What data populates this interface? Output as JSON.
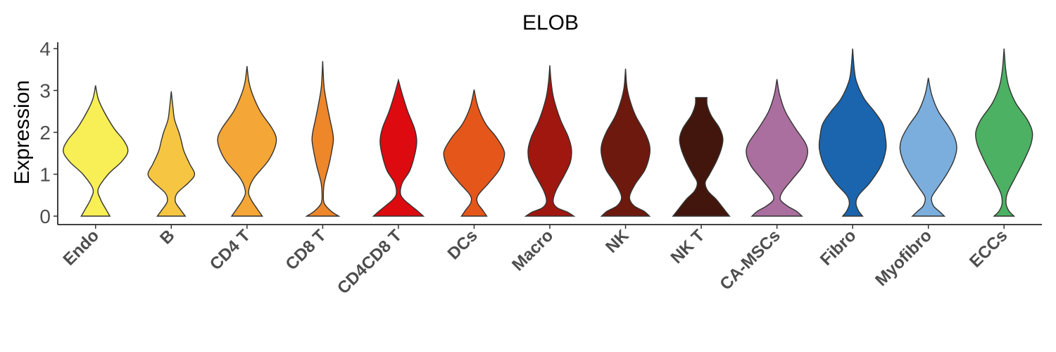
{
  "chart_data": {
    "type": "violin",
    "title": "ELOB",
    "ylabel": "Expression",
    "xlabel": "",
    "ylim": [
      0,
      4
    ],
    "yticks": [
      "0",
      "1",
      "2",
      "3",
      "4"
    ],
    "grid": false,
    "legend": "none",
    "categories": [
      "Endo",
      "B",
      "CD4 T",
      "CD8 T",
      "CD4CD8 T",
      "DCs",
      "Macro",
      "NK",
      "NK T",
      "CA-MSCs",
      "Fibro",
      "Myofibro",
      "ECCs"
    ],
    "colors": [
      "#F7EF55",
      "#F6C643",
      "#F4A636",
      "#EE862A",
      "#DD0A10",
      "#E5561B",
      "#A0170F",
      "#6E190E",
      "#42160C",
      "#AA6F9E",
      "#1A65AE",
      "#7BAEDD",
      "#4CB163"
    ],
    "violins": [
      {
        "name": "Endo",
        "max": 3.12,
        "cap": false,
        "profile": [
          [
            0,
            0.43
          ],
          [
            0.18,
            0.3
          ],
          [
            0.4,
            0.15
          ],
          [
            0.65,
            0.08
          ],
          [
            1.0,
            0.38
          ],
          [
            1.3,
            0.78
          ],
          [
            1.55,
            0.97
          ],
          [
            1.8,
            0.85
          ],
          [
            2.1,
            0.55
          ],
          [
            2.5,
            0.25
          ],
          [
            2.8,
            0.08
          ],
          [
            3.12,
            0.0
          ]
        ]
      },
      {
        "name": "B",
        "max": 2.98,
        "cap": false,
        "profile": [
          [
            0,
            0.42
          ],
          [
            0.15,
            0.28
          ],
          [
            0.35,
            0.12
          ],
          [
            0.55,
            0.18
          ],
          [
            0.8,
            0.52
          ],
          [
            1.0,
            0.7
          ],
          [
            1.25,
            0.55
          ],
          [
            1.55,
            0.38
          ],
          [
            1.8,
            0.3
          ],
          [
            2.0,
            0.23
          ],
          [
            2.3,
            0.1
          ],
          [
            2.6,
            0.05
          ],
          [
            2.98,
            0.0
          ]
        ]
      },
      {
        "name": "CD4 T",
        "max": 3.58,
        "cap": false,
        "profile": [
          [
            0,
            0.46
          ],
          [
            0.18,
            0.3
          ],
          [
            0.4,
            0.12
          ],
          [
            0.6,
            0.05
          ],
          [
            0.9,
            0.2
          ],
          [
            1.3,
            0.62
          ],
          [
            1.6,
            0.82
          ],
          [
            1.85,
            0.88
          ],
          [
            2.1,
            0.75
          ],
          [
            2.5,
            0.4
          ],
          [
            2.9,
            0.17
          ],
          [
            3.2,
            0.06
          ],
          [
            3.58,
            0.0
          ]
        ]
      },
      {
        "name": "CD8 T",
        "max": 3.7,
        "cap": false,
        "profile": [
          [
            0,
            0.48
          ],
          [
            0.12,
            0.25
          ],
          [
            0.3,
            0.05
          ],
          [
            0.5,
            0.02
          ],
          [
            0.8,
            0.05
          ],
          [
            1.2,
            0.18
          ],
          [
            1.5,
            0.26
          ],
          [
            1.8,
            0.32
          ],
          [
            2.0,
            0.3
          ],
          [
            2.3,
            0.22
          ],
          [
            2.7,
            0.12
          ],
          [
            3.1,
            0.04
          ],
          [
            3.7,
            0.0
          ]
        ]
      },
      {
        "name": "CD4CD8 T",
        "max": 3.25,
        "cap": false,
        "profile": [
          [
            0,
            0.75
          ],
          [
            0.12,
            0.58
          ],
          [
            0.25,
            0.38
          ],
          [
            0.4,
            0.16
          ],
          [
            0.55,
            0.06
          ],
          [
            0.8,
            0.12
          ],
          [
            1.1,
            0.35
          ],
          [
            1.5,
            0.5
          ],
          [
            1.8,
            0.55
          ],
          [
            2.1,
            0.48
          ],
          [
            2.5,
            0.28
          ],
          [
            2.9,
            0.12
          ],
          [
            3.25,
            0.0
          ]
        ]
      },
      {
        "name": "DCs",
        "max": 3.02,
        "cap": false,
        "profile": [
          [
            0,
            0.38
          ],
          [
            0.15,
            0.25
          ],
          [
            0.32,
            0.1
          ],
          [
            0.5,
            0.12
          ],
          [
            0.8,
            0.45
          ],
          [
            1.1,
            0.75
          ],
          [
            1.4,
            0.9
          ],
          [
            1.6,
            0.88
          ],
          [
            1.9,
            0.65
          ],
          [
            2.2,
            0.35
          ],
          [
            2.6,
            0.12
          ],
          [
            3.02,
            0.0
          ]
        ]
      },
      {
        "name": "Macro",
        "max": 3.6,
        "cap": false,
        "profile": [
          [
            0,
            0.72
          ],
          [
            0.1,
            0.52
          ],
          [
            0.2,
            0.22
          ],
          [
            0.35,
            0.1
          ],
          [
            0.6,
            0.18
          ],
          [
            1.0,
            0.45
          ],
          [
            1.3,
            0.62
          ],
          [
            1.6,
            0.65
          ],
          [
            1.9,
            0.55
          ],
          [
            2.3,
            0.32
          ],
          [
            2.8,
            0.12
          ],
          [
            3.2,
            0.04
          ],
          [
            3.6,
            0.0
          ]
        ]
      },
      {
        "name": "NK",
        "max": 3.52,
        "cap": false,
        "profile": [
          [
            0,
            0.72
          ],
          [
            0.12,
            0.55
          ],
          [
            0.25,
            0.25
          ],
          [
            0.45,
            0.12
          ],
          [
            0.75,
            0.28
          ],
          [
            1.1,
            0.58
          ],
          [
            1.45,
            0.72
          ],
          [
            1.7,
            0.72
          ],
          [
            2.0,
            0.58
          ],
          [
            2.4,
            0.3
          ],
          [
            2.8,
            0.12
          ],
          [
            3.1,
            0.04
          ],
          [
            3.52,
            0.0
          ]
        ]
      },
      {
        "name": "NK T",
        "max": 2.83,
        "cap": true,
        "profile": [
          [
            0,
            0.85
          ],
          [
            0.2,
            0.65
          ],
          [
            0.4,
            0.45
          ],
          [
            0.6,
            0.2
          ],
          [
            0.8,
            0.12
          ],
          [
            1.0,
            0.25
          ],
          [
            1.3,
            0.45
          ],
          [
            1.6,
            0.6
          ],
          [
            1.85,
            0.65
          ],
          [
            2.1,
            0.55
          ],
          [
            2.4,
            0.3
          ],
          [
            2.65,
            0.18
          ],
          [
            2.83,
            0.17
          ]
        ]
      },
      {
        "name": "CA-MSCs",
        "max": 3.27,
        "cap": false,
        "profile": [
          [
            0,
            0.75
          ],
          [
            0.12,
            0.58
          ],
          [
            0.25,
            0.3
          ],
          [
            0.4,
            0.1
          ],
          [
            0.6,
            0.18
          ],
          [
            0.9,
            0.48
          ],
          [
            1.2,
            0.78
          ],
          [
            1.5,
            0.92
          ],
          [
            1.75,
            0.85
          ],
          [
            2.1,
            0.55
          ],
          [
            2.5,
            0.25
          ],
          [
            2.9,
            0.08
          ],
          [
            3.27,
            0.0
          ]
        ]
      },
      {
        "name": "Fibro",
        "max": 4.0,
        "cap": false,
        "profile": [
          [
            0,
            0.3
          ],
          [
            0.12,
            0.18
          ],
          [
            0.3,
            0.1
          ],
          [
            0.5,
            0.18
          ],
          [
            0.8,
            0.52
          ],
          [
            1.2,
            0.85
          ],
          [
            1.6,
            1.0
          ],
          [
            1.9,
            0.98
          ],
          [
            2.2,
            0.9
          ],
          [
            2.5,
            0.65
          ],
          [
            2.8,
            0.35
          ],
          [
            3.2,
            0.12
          ],
          [
            3.5,
            0.05
          ],
          [
            4.0,
            0.0
          ]
        ]
      },
      {
        "name": "Myofibro",
        "max": 3.3,
        "cap": false,
        "profile": [
          [
            0,
            0.48
          ],
          [
            0.12,
            0.32
          ],
          [
            0.25,
            0.15
          ],
          [
            0.45,
            0.1
          ],
          [
            0.7,
            0.3
          ],
          [
            1.0,
            0.55
          ],
          [
            1.3,
            0.75
          ],
          [
            1.6,
            0.85
          ],
          [
            1.85,
            0.8
          ],
          [
            2.15,
            0.6
          ],
          [
            2.5,
            0.3
          ],
          [
            2.9,
            0.1
          ],
          [
            3.3,
            0.0
          ]
        ]
      },
      {
        "name": "ECCs",
        "max": 4.0,
        "cap": false,
        "profile": [
          [
            0,
            0.3
          ],
          [
            0.12,
            0.15
          ],
          [
            0.3,
            0.06
          ],
          [
            0.55,
            0.1
          ],
          [
            0.9,
            0.32
          ],
          [
            1.3,
            0.58
          ],
          [
            1.7,
            0.8
          ],
          [
            2.0,
            0.85
          ],
          [
            2.3,
            0.7
          ],
          [
            2.7,
            0.35
          ],
          [
            3.1,
            0.14
          ],
          [
            3.5,
            0.05
          ],
          [
            4.0,
            0.0
          ]
        ]
      }
    ]
  }
}
